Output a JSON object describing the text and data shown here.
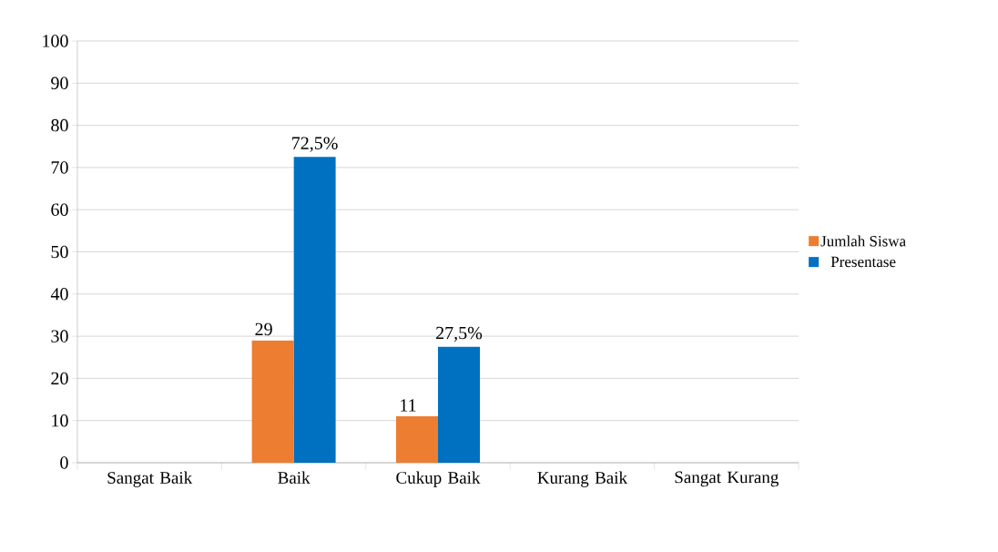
{
  "chart_data": {
    "type": "bar",
    "categories": [
      "Sangat Baik",
      "Baik",
      "Cukup Baik",
      "Kurang Baik",
      "Sangat Kurang"
    ],
    "series": [
      {
        "name": "Jumlah Siswa",
        "color": "#ed7d31",
        "values": [
          null,
          29,
          11,
          null,
          null
        ],
        "value_labels": [
          null,
          "29",
          "11",
          null,
          null
        ]
      },
      {
        "name": "Presentase",
        "color": "#0070c0",
        "values": [
          null,
          72.5,
          27.5,
          null,
          null
        ],
        "value_labels": [
          null,
          "72,5%",
          "27,5%",
          null,
          null
        ]
      }
    ],
    "ylim": [
      0,
      100
    ],
    "yticks": [
      0,
      10,
      20,
      30,
      40,
      50,
      60,
      70,
      80,
      90,
      100
    ],
    "grid": "y",
    "legend": "right"
  }
}
